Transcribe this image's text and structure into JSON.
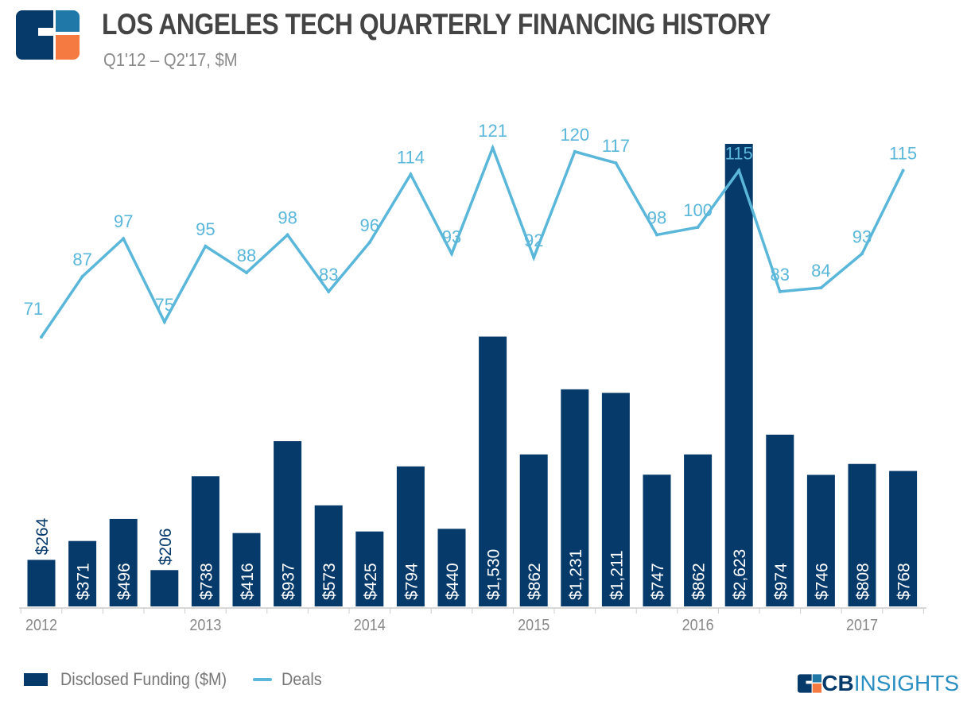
{
  "header": {
    "title": "LOS ANGELES TECH QUARTERLY FINANCING HISTORY",
    "subtitle": "Q1'12 – Q2'17, $M"
  },
  "brand": {
    "cb": "CB",
    "insights": "INSIGHTS"
  },
  "colors": {
    "bar": "#063a6b",
    "line": "#5ab7da",
    "logo_dark": "#063a6b",
    "logo_blue": "#1f78a8",
    "logo_orange": "#f47a42"
  },
  "chart_data": {
    "type": "bar+line",
    "title": "LOS ANGELES TECH QUARTERLY FINANCING HISTORY",
    "categories": [
      "Q1'12",
      "Q2'12",
      "Q3'12",
      "Q4'12",
      "Q1'13",
      "Q2'13",
      "Q3'13",
      "Q4'13",
      "Q1'14",
      "Q2'14",
      "Q3'14",
      "Q4'14",
      "Q1'15",
      "Q2'15",
      "Q3'15",
      "Q4'15",
      "Q1'16",
      "Q2'16",
      "Q3'16",
      "Q4'16",
      "Q1'17",
      "Q2'17"
    ],
    "year_labels": [
      {
        "label": "2012",
        "index": 0
      },
      {
        "label": "2013",
        "index": 4
      },
      {
        "label": "2014",
        "index": 8
      },
      {
        "label": "2015",
        "index": 12
      },
      {
        "label": "2016",
        "index": 16
      },
      {
        "label": "2017",
        "index": 20
      }
    ],
    "series": [
      {
        "name": "Disclosed Funding ($M)",
        "type": "bar",
        "values": [
          264,
          371,
          496,
          206,
          738,
          416,
          937,
          573,
          425,
          794,
          440,
          1530,
          862,
          1231,
          1211,
          747,
          862,
          2623,
          974,
          746,
          808,
          768
        ],
        "labels": [
          "$264",
          "$371",
          "$496",
          "$206",
          "$738",
          "$416",
          "$937",
          "$573",
          "$425",
          "$794",
          "$440",
          "$1,530",
          "$862",
          "$1,231",
          "$1,211",
          "$747",
          "$862",
          "$2,623",
          "$974",
          "$746",
          "$808",
          "$768"
        ]
      },
      {
        "name": "Deals",
        "type": "line",
        "values": [
          71,
          87,
          97,
          75,
          95,
          88,
          98,
          83,
          96,
          114,
          93,
          121,
          92,
          120,
          117,
          98,
          100,
          115,
          83,
          84,
          93,
          115
        ]
      }
    ],
    "legend": "bottom-left"
  }
}
